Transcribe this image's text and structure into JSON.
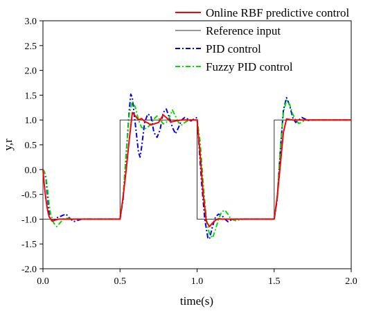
{
  "chart_data": {
    "type": "line",
    "title": "",
    "xlabel": "time(s)",
    "ylabel": "y,r",
    "xlim": [
      0.0,
      2.0
    ],
    "ylim": [
      -2.0,
      3.0
    ],
    "xticks": [
      0.0,
      0.5,
      1.0,
      1.5,
      2.0
    ],
    "xtick_labels": [
      "0.0",
      "0.5",
      "1.0",
      "1.5",
      "2.0"
    ],
    "yticks": [
      -2.0,
      -1.5,
      -1.0,
      -0.5,
      0.0,
      0.5,
      1.0,
      1.5,
      2.0,
      2.5,
      3.0
    ],
    "ytick_labels": [
      "-2.0",
      "-1.5",
      "-1.0",
      "-0.5",
      "0.0",
      "0.5",
      "1.0",
      "1.5",
      "2.0",
      "2.5",
      "3.0"
    ],
    "grid": false,
    "legend_position": "top-right",
    "series": [
      {
        "name": "Online RBF predictive control",
        "color": "#ff0000",
        "style": "solid",
        "x": [
          0.0,
          0.01,
          0.02,
          0.03,
          0.04,
          0.06,
          0.08,
          0.1,
          0.14,
          0.2,
          0.3,
          0.4,
          0.5,
          0.52,
          0.54,
          0.56,
          0.58,
          0.6,
          0.62,
          0.64,
          0.66,
          0.68,
          0.7,
          0.72,
          0.75,
          0.78,
          0.8,
          0.83,
          0.86,
          0.9,
          0.95,
          0.98,
          1.0,
          1.02,
          1.04,
          1.06,
          1.08,
          1.1,
          1.12,
          1.14,
          1.16,
          1.2,
          1.3,
          1.4,
          1.5,
          1.52,
          1.54,
          1.56,
          1.58,
          1.6,
          1.62,
          1.65,
          1.7,
          1.8,
          1.9,
          2.0
        ],
        "y": [
          0.0,
          -0.35,
          -0.62,
          -0.82,
          -0.95,
          -1.04,
          -1.02,
          -1.0,
          -1.0,
          -1.0,
          -1.0,
          -1.0,
          -1.0,
          -0.55,
          0.0,
          0.6,
          1.15,
          1.08,
          1.0,
          1.03,
          0.97,
          0.94,
          0.9,
          0.92,
          0.95,
          1.1,
          1.05,
          0.96,
          0.98,
          1.0,
          1.0,
          1.0,
          1.0,
          0.3,
          -0.5,
          -1.05,
          -1.15,
          -1.08,
          -1.02,
          -0.99,
          -1.0,
          -1.0,
          -1.0,
          -1.0,
          -1.0,
          -0.55,
          0.1,
          0.75,
          1.02,
          1.01,
          1.0,
          1.0,
          1.0,
          1.0,
          1.0,
          1.0
        ]
      },
      {
        "name": "Reference input",
        "color": "#333333",
        "style": "solid",
        "x": [
          0.0,
          0.0,
          0.5,
          0.5,
          1.0,
          1.0,
          1.5,
          1.5,
          2.0
        ],
        "y": [
          0.0,
          -1.0,
          -1.0,
          1.0,
          1.0,
          -1.0,
          -1.0,
          1.0,
          1.0
        ]
      },
      {
        "name": "PID control",
        "color": "#0000ee",
        "style": "dashdot",
        "x": [
          0.0,
          0.01,
          0.02,
          0.03,
          0.04,
          0.05,
          0.07,
          0.09,
          0.11,
          0.13,
          0.15,
          0.17,
          0.2,
          0.25,
          0.3,
          0.4,
          0.5,
          0.52,
          0.54,
          0.56,
          0.57,
          0.58,
          0.6,
          0.62,
          0.63,
          0.64,
          0.66,
          0.68,
          0.7,
          0.72,
          0.74,
          0.76,
          0.78,
          0.8,
          0.82,
          0.84,
          0.86,
          0.88,
          0.9,
          0.92,
          0.94,
          0.96,
          0.98,
          1.0,
          1.01,
          1.03,
          1.05,
          1.07,
          1.08,
          1.1,
          1.12,
          1.14,
          1.16,
          1.18,
          1.2,
          1.22,
          1.25,
          1.3,
          1.4,
          1.5,
          1.52,
          1.54,
          1.56,
          1.58,
          1.6,
          1.62,
          1.64,
          1.66,
          1.68,
          1.7,
          1.72,
          1.75,
          1.8,
          1.9,
          2.0
        ],
        "y": [
          0.0,
          -0.05,
          -0.2,
          -0.55,
          -0.9,
          -1.02,
          -1.03,
          -0.97,
          -0.95,
          -0.92,
          -0.9,
          -0.97,
          -1.05,
          -1.0,
          -1.0,
          -1.0,
          -1.0,
          -0.6,
          0.3,
          1.2,
          1.52,
          1.45,
          0.9,
          0.35,
          0.25,
          0.45,
          0.95,
          1.12,
          1.08,
          0.75,
          0.65,
          0.8,
          1.15,
          1.22,
          1.05,
          0.85,
          0.72,
          0.85,
          1.0,
          1.05,
          1.02,
          0.98,
          1.02,
          1.05,
          0.6,
          -0.3,
          -1.0,
          -1.38,
          -1.4,
          -1.15,
          -0.95,
          -0.9,
          -0.92,
          -1.0,
          -1.05,
          -1.02,
          -1.0,
          -1.0,
          -1.0,
          -1.0,
          -0.6,
          0.4,
          1.2,
          1.45,
          1.3,
          1.05,
          0.95,
          1.0,
          1.05,
          1.02,
          0.99,
          1.0,
          1.0,
          1.0,
          1.0
        ]
      },
      {
        "name": "Fuzzy PID control",
        "color": "#00dd00",
        "style": "dashdot",
        "x": [
          0.0,
          0.01,
          0.02,
          0.03,
          0.04,
          0.05,
          0.07,
          0.09,
          0.11,
          0.13,
          0.15,
          0.2,
          0.3,
          0.4,
          0.5,
          0.52,
          0.54,
          0.56,
          0.58,
          0.6,
          0.62,
          0.64,
          0.66,
          0.68,
          0.7,
          0.72,
          0.74,
          0.76,
          0.78,
          0.8,
          0.82,
          0.84,
          0.86,
          0.88,
          0.9,
          0.92,
          0.95,
          1.0,
          1.02,
          1.04,
          1.06,
          1.08,
          1.1,
          1.12,
          1.14,
          1.16,
          1.18,
          1.2,
          1.22,
          1.25,
          1.3,
          1.4,
          1.5,
          1.52,
          1.54,
          1.56,
          1.58,
          1.6,
          1.62,
          1.64,
          1.66,
          1.68,
          1.7,
          1.75,
          1.8,
          1.9,
          2.0
        ],
        "y": [
          0.0,
          -0.05,
          -0.15,
          -0.4,
          -0.7,
          -0.9,
          -1.08,
          -1.15,
          -1.08,
          -1.0,
          -0.98,
          -1.0,
          -1.0,
          -1.0,
          -1.0,
          -0.55,
          0.35,
          1.1,
          1.38,
          1.25,
          1.0,
          0.85,
          0.82,
          0.85,
          0.92,
          1.02,
          1.08,
          1.0,
          0.92,
          0.95,
          1.05,
          1.2,
          1.08,
          0.95,
          0.9,
          0.95,
          1.0,
          1.0,
          0.55,
          -0.3,
          -1.0,
          -1.3,
          -1.38,
          -1.2,
          -1.0,
          -0.85,
          -0.82,
          -0.9,
          -1.0,
          -1.03,
          -1.0,
          -1.0,
          -1.0,
          -0.55,
          0.4,
          1.15,
          1.4,
          1.32,
          1.12,
          1.0,
          0.93,
          0.95,
          1.0,
          1.0,
          1.0,
          1.0,
          1.0
        ]
      }
    ]
  }
}
